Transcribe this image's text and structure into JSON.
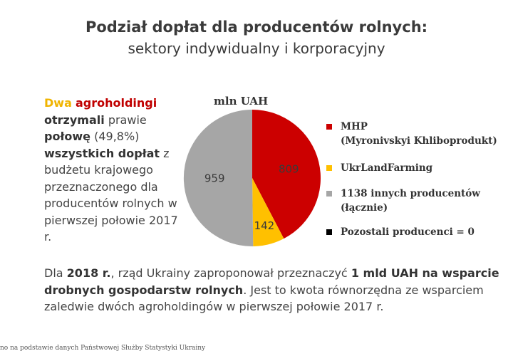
{
  "header": {
    "title": "Podział dopłat dla producentów rolnych:",
    "subtitle": "sektory indywidualny i korporacyjny"
  },
  "left_paragraph": {
    "dwa": "Dwa",
    "agroholdingi": "agroholdingi",
    "otrzymali": "otrzymali",
    "prawie": "prawie",
    "polowe": "połowę",
    "percent": "(49,8%)",
    "wszystkich_doplat": "wszystkich dopłat",
    "rest": "z budżetu krajowego przeznaczonego dla producentów rolnych w pierwszej połowie 2017 r."
  },
  "bottom_paragraph": {
    "p1": "Dla",
    "p2": "2018 r.",
    "p3": ", rząd Ukrainy zaproponował przeznaczyć",
    "p4": "1 mld UAH na wsparcie drobnych gospodarstw rolnych",
    "p5": ". Jest to kwota równorzędna ze wsparciem zaledwie dwóch agroholdingów w pierwszej połowie 2017 r."
  },
  "source": "no na podstawie danych Państwowej Służby Statystyki Ukrainy",
  "chart_data": {
    "type": "pie",
    "unit_label": "mln UAH",
    "series": [
      {
        "name": "MHP (Myronivskyi Khliboprodukt)",
        "label_lines": [
          "MHP",
          "(Myronivskyi Khliboprodukt)"
        ],
        "value": 809,
        "color": "#cc0000"
      },
      {
        "name": "UkrLandFarming",
        "label_lines": [
          "UkrLandFarming"
        ],
        "value": 142,
        "color": "#ffc000"
      },
      {
        "name": "1138 innych producentów (łącznie)",
        "label_lines": [
          "1138 innych producentów",
          "(łącznie)"
        ],
        "value": 959,
        "color": "#a6a6a6"
      },
      {
        "name": "Pozostali producenci = 0",
        "label_lines": [
          "Pozostali producenci = 0"
        ],
        "value": 0,
        "color": "#000000"
      }
    ]
  }
}
